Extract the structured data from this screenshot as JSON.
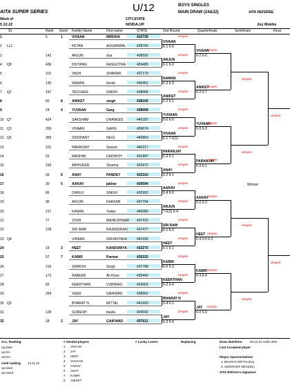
{
  "header": {
    "title": "U/12",
    "series": "AITA SUPER SERIES",
    "event": "BOYS SINGLES",
    "draw": "MAIN DRAW (24&32)",
    "referee_title": "AITA REFEREE",
    "week_label": "Week of",
    "city_label": "CITY,STATE",
    "date": "5.12.22",
    "city_value": "NOIDA,UP",
    "referee_name": "Joy Mukhe"
  },
  "columns": [
    "St.",
    "Rank",
    "Seed",
    "Family Name",
    "First name",
    "STATE",
    "2nd Round",
    "Quarterfinals",
    "Semifinals",
    "Final"
  ],
  "rows": [
    {
      "no": "1",
      "st": "",
      "rank": "5",
      "seed": "1",
      "family": "VIVAAN",
      "first": "MIRDHA",
      "state": "432735",
      "seeded": true
    },
    {
      "no": "2",
      "st": "LL1",
      "rank": "",
      "seed": "",
      "family": "KETAN",
      "first": "AGGARWAL",
      "state": "438700",
      "seeded": false
    },
    {
      "no": "3",
      "st": "",
      "rank": "142",
      "seed": "",
      "family": "ARJUN",
      "first": "dua",
      "state": "438592",
      "seeded": false
    },
    {
      "no": "4",
      "st": "Q8",
      "rank": "436",
      "seed": "",
      "family": "DIVYANG",
      "first": "RASGOTRA",
      "state": "459485",
      "seeded": false
    },
    {
      "no": "5",
      "st": "",
      "rank": "110",
      "seed": "",
      "family": "YASH",
      "first": "SHARMA",
      "state": "437179",
      "seeded": false
    },
    {
      "no": "6",
      "st": "",
      "rank": "130",
      "seed": "",
      "family": "NAMAN",
      "first": "borah",
      "state": "436451",
      "seeded": false
    },
    {
      "no": "7",
      "st": "Q2",
      "rank": "197",
      "seed": "",
      "family": "TEGVEER",
      "first": "SINGH",
      "state": "438084",
      "seeded": false
    },
    {
      "no": "8",
      "st": "",
      "rank": "60",
      "seed": "8",
      "family": "ANIKET",
      "first": "singh",
      "state": "438105",
      "seeded": true
    },
    {
      "no": "9",
      "st": "",
      "rank": "24",
      "seed": "4",
      "family": "YUVAAN",
      "first": "Garg",
      "state": "438058",
      "seeded": true
    },
    {
      "no": "10",
      "st": "Q7",
      "rank": "424",
      "seed": "",
      "family": "SAKSHAM",
      "first": "DHANKED",
      "state": "440287",
      "seeded": false
    },
    {
      "no": "11",
      "st": "Q3",
      "rank": "265",
      "seed": "",
      "family": "VIVAAN",
      "first": "GARG",
      "state": "439674",
      "seeded": false
    },
    {
      "no": "12",
      "st": "Q5",
      "rank": "365",
      "seed": "",
      "family": "SIDDHANT",
      "first": "NEGI",
      "state": "440853",
      "seeded": false
    },
    {
      "no": "13",
      "st": "",
      "rank": "101",
      "seed": "",
      "family": "PARANJAY",
      "first": "Siwach",
      "state": "440217",
      "seeded": false
    },
    {
      "no": "14",
      "st": "",
      "rank": "91",
      "seed": "",
      "family": "MADHAV",
      "first": "DADHICH",
      "state": "431897",
      "seeded": false
    },
    {
      "no": "15",
      "st": "",
      "rank": "155",
      "seed": "",
      "family": "ABHIVEER",
      "first": "Sharma",
      "state": "432972",
      "seeded": false
    },
    {
      "no": "16",
      "st": "",
      "rank": "33",
      "seed": "6",
      "family": "ANAY",
      "first": "PANDEY",
      "state": "433310",
      "seeded": true
    },
    {
      "no": "17",
      "st": "",
      "rank": "30",
      "seed": "5",
      "family": "AARAV",
      "first": "jakhar",
      "state": "439594",
      "seeded": true
    },
    {
      "no": "18",
      "st": "",
      "rank": "85",
      "seed": "",
      "family": "DHRUV",
      "first": "SINGH",
      "state": "432952",
      "seeded": false
    },
    {
      "no": "19",
      "st": "",
      "rank": "90",
      "seed": "",
      "family": "ARJUN",
      "first": "KAKKAR",
      "state": "437794",
      "seeded": false
    },
    {
      "no": "20",
      "st": "",
      "rank": "217",
      "seed": "",
      "family": "KANAN",
      "first": "Yadav",
      "state": "440080",
      "seeded": false
    },
    {
      "no": "21",
      "st": "",
      "rank": "77",
      "seed": "",
      "family": "JOSH",
      "first": "MAHESHWAR",
      "state": "437415",
      "seeded": false
    },
    {
      "no": "22",
      "st": "",
      "rank": "109",
      "seed": "",
      "family": "SRI RAM",
      "first": "RAJENDRAN",
      "state": "437477",
      "seeded": false
    },
    {
      "no": "23",
      "st": "Q4",
      "rank": "",
      "seed": "",
      "family": "VIHAAN",
      "first": "SRIVASTAVA",
      "state": "441555",
      "seeded": false
    },
    {
      "no": "24",
      "st": "",
      "rank": "19",
      "seed": "3",
      "family": "HEET",
      "first": "KANDORIYA",
      "state": "433275",
      "seeded": true
    },
    {
      "no": "25",
      "st": "",
      "rank": "57",
      "seed": "7",
      "family": "KABIR",
      "first": "Parmar",
      "state": "435222",
      "seeded": true
    },
    {
      "no": "26",
      "st": "",
      "rank": "215",
      "seed": "",
      "family": "SPARSH",
      "first": "Singh",
      "state": "437788",
      "seeded": false
    },
    {
      "no": "27",
      "st": "",
      "rank": "173",
      "seed": "",
      "family": "RABEEB",
      "first": "Ali Khan",
      "state": "435443",
      "seeded": false
    },
    {
      "no": "28",
      "st": "",
      "rank": "82",
      "seed": "",
      "family": "KEERTHAN",
      "first": "VISHWAS",
      "state": "433902",
      "seeded": false
    },
    {
      "no": "29",
      "st": "",
      "rank": "264",
      "seed": "",
      "family": "VEER",
      "first": "GAIKWAD",
      "state": "438902",
      "seeded": false
    },
    {
      "no": "30",
      "st": "Q6",
      "rank": "",
      "seed": "",
      "family": "BHARAT N",
      "first": "MITTAL",
      "state": "441693",
      "seeded": false
    },
    {
      "no": "31",
      "st": "",
      "rank": "128",
      "seed": "",
      "family": "GORESH",
      "first": "baisla",
      "state": "439042",
      "seeded": false
    },
    {
      "no": "32",
      "st": "",
      "rank": "18",
      "seed": "2",
      "family": "JAY",
      "first": "GAIKWAD",
      "state": "437612",
      "seeded": true
    }
  ],
  "round2": [
    {
      "name": "VIVAAN",
      "score": "6-1 6-0"
    },
    {
      "name": "ARJUN",
      "score": "6-1 6-3"
    },
    {
      "name": "NAMAN",
      "score": "6-3 6-3"
    },
    {
      "name": "ANIKET",
      "score": "6-2 6-1"
    },
    {
      "name": "YUVAAN",
      "score": "6-0 6-0"
    },
    {
      "name": "VIVAAN",
      "score": "6-1 7-6(1)"
    },
    {
      "name": "PARANJAY",
      "score": "6-3 6-1"
    },
    {
      "name": "ANAY",
      "score": "6-2 6-1"
    },
    {
      "name": "AARAV",
      "score": "6-4 6-0"
    },
    {
      "name": "ARJUN",
      "score": "7-6(3) 6-4"
    },
    {
      "name": "SRI RAM",
      "score": "6-1 6-3"
    },
    {
      "name": "HEET",
      "score": "6-1 6-1"
    },
    {
      "name": "KABIR",
      "score": "6-0 6-3"
    },
    {
      "name": "KEERTHAN",
      "score": "6-2 6-4"
    },
    {
      "name": "BHARAT N",
      "score": "6-4 6-1"
    },
    {
      "name": "JAY",
      "score": "6-3 6-0"
    }
  ],
  "quarterfinals": [
    {
      "name": "VIVAAN",
      "score": "6-2 6-0"
    },
    {
      "name": "ANIKET",
      "score": "6-2 6-7"
    },
    {
      "name": "YUVAAN",
      "score": "6-0 6-3"
    },
    {
      "name": "PARANJAY",
      "score": "6-3 6-1"
    },
    {
      "name": "AARAV",
      "score": "6-0 6-3"
    },
    {
      "name": "HEET",
      "score": "6-4 2-6 6-3"
    },
    {
      "name": "KABIR",
      "score": "6-3 6-4"
    },
    {
      "name": "JAY",
      "score": "6-0 6-0"
    }
  ],
  "umpire_label": "Umpire",
  "winner_label": "Winner:",
  "footer": {
    "acc_ranking": "Acc. Ranking",
    "seeded_players": "# Seeded players",
    "lucky_losers": "# Lucky Losers",
    "replacing": "Replacing",
    "draw_date_label": "Draw date/time:",
    "draw_date": "03.12.22 1335 HRS",
    "last_accepted": "Last Accepted player",
    "player_reps": "Player representatives",
    "reps": [
      "1. BHARAT MITTAL(DL)",
      "2. SIDDHANT NEGI(DL)"
    ],
    "referee_sig": "AITA Referee's signature",
    "left_labels": [
      "ng Date",
      "op DA",
      "ast DA"
    ],
    "seed_ranking": "seed ranking",
    "seed_ranking_date": "14.11.22",
    "seed_left": [
      "op seed",
      "ast seed"
    ],
    "seeds": [
      "VIVAAN",
      "JAY",
      "HEET",
      "YUVAAN",
      "AARAV",
      "ANAY",
      "KABIR",
      "ANIKET"
    ]
  }
}
